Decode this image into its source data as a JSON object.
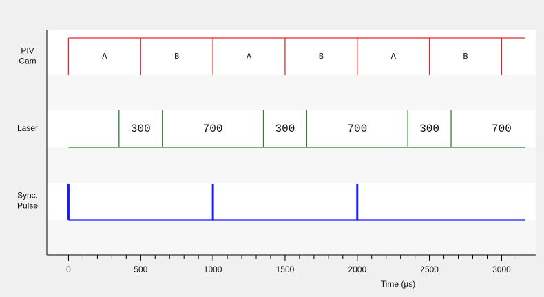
{
  "chart_data": {
    "type": "timing",
    "xlabel": "Time (µs)",
    "xlim": [
      -150,
      3160
    ],
    "xticks": [
      0,
      500,
      1000,
      1500,
      2000,
      2500,
      3000
    ],
    "xminor": 100,
    "rows": [
      {
        "name": [
          "PIV",
          "Cam"
        ],
        "color": "#e02828",
        "edges": [
          0,
          500,
          1000,
          1500,
          2000,
          2500,
          3000
        ],
        "labels": [
          "A",
          "B",
          "A",
          "B",
          "A",
          "B"
        ]
      },
      {
        "name": [
          "Laser"
        ],
        "color": "#2e7d32",
        "edges": [
          350,
          650,
          1350,
          1650,
          2350,
          2650
        ],
        "labels": [
          300,
          700,
          300,
          700,
          300,
          700
        ]
      },
      {
        "name": [
          "Sync.",
          "Pulse"
        ],
        "color": "#1a1aff",
        "pulses": [
          0,
          1000,
          2000
        ]
      }
    ]
  }
}
